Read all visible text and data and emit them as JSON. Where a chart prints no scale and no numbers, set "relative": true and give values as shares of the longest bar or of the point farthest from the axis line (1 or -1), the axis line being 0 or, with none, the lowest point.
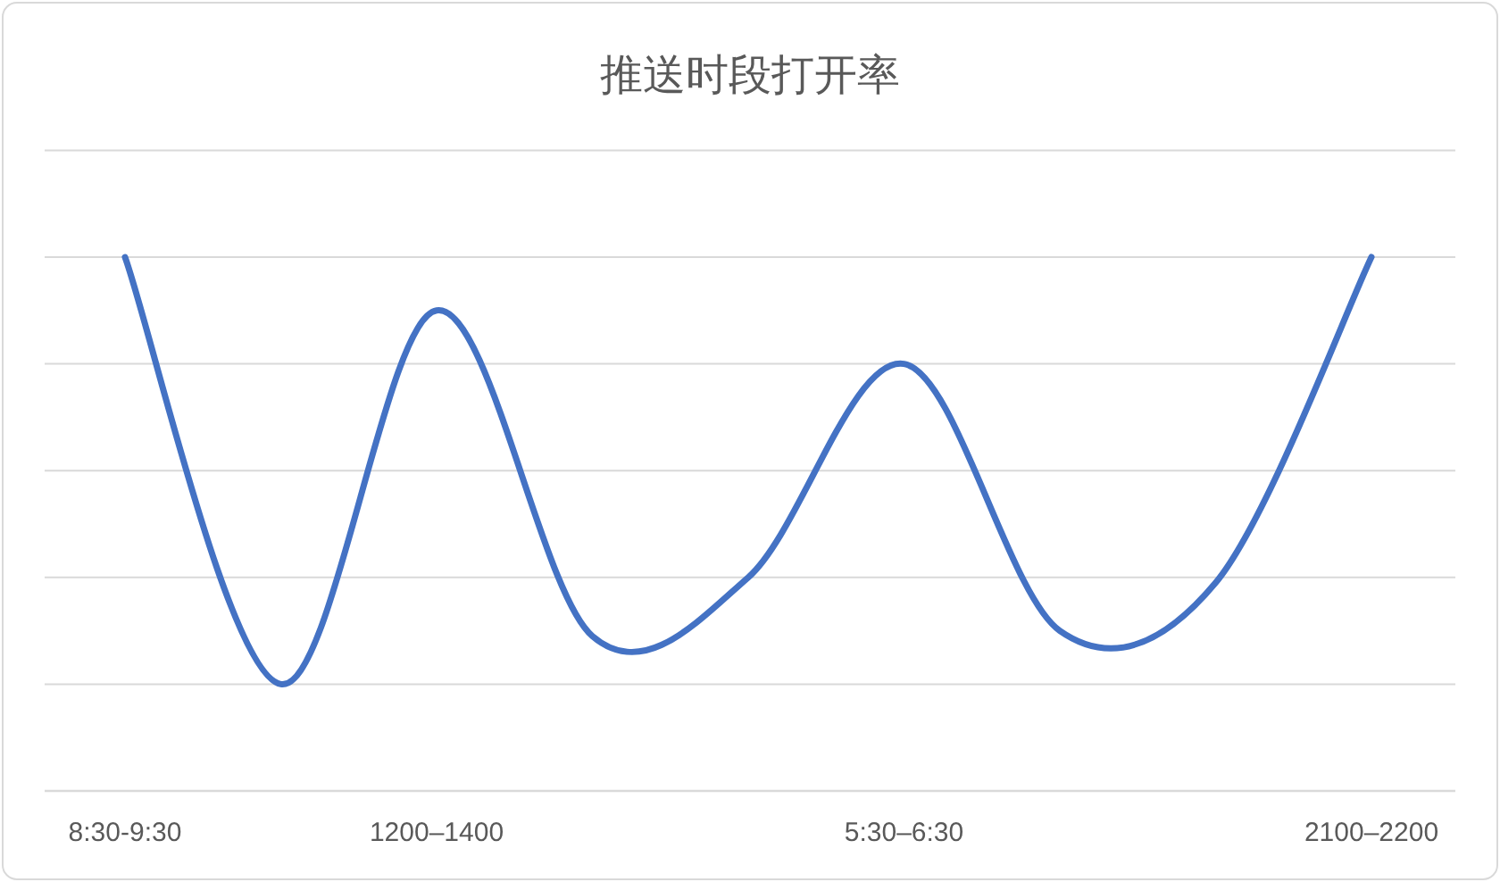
{
  "chart_data": {
    "type": "line",
    "title": "推送时段打开率",
    "relative": true,
    "grid": true,
    "categories": [
      "8:30-9:30",
      null,
      "1200–1400",
      null,
      null,
      "5:30–6:30",
      null,
      null,
      "2100–2200"
    ],
    "series": [
      {
        "color": "#4472c4",
        "values": [
          1,
          0.2,
          0.9,
          0.29,
          0.4,
          0.8,
          0.3,
          0.39,
          1
        ]
      }
    ]
  }
}
